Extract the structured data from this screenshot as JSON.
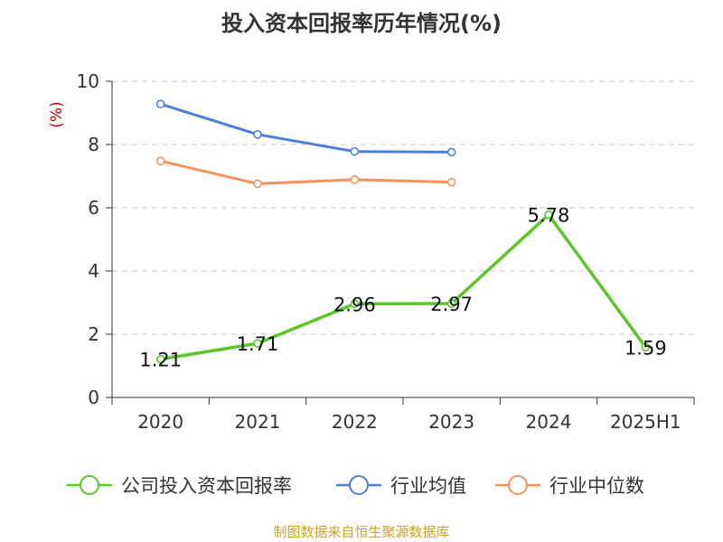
{
  "chart_data": {
    "type": "line",
    "title": "投入资本回报率历年情况(%)",
    "ylabel": "(%)",
    "categories": [
      "2020",
      "2021",
      "2022",
      "2023",
      "2024",
      "2025H1"
    ],
    "ylim": [
      0,
      10
    ],
    "yticks": [
      0,
      2,
      4,
      6,
      8,
      10
    ],
    "grid": true,
    "legend_position": "bottom",
    "series": [
      {
        "name": "公司投入资本回报率",
        "color": "#5bc52b",
        "values": [
          1.21,
          1.71,
          2.96,
          2.97,
          5.78,
          1.59
        ],
        "labels": [
          "1.21",
          "1.71",
          "2.96",
          "2.97",
          "5.78",
          "1.59"
        ]
      },
      {
        "name": "行业均值",
        "color": "#4e7fd8",
        "values": [
          9.28,
          8.32,
          7.78,
          7.76,
          null,
          null
        ]
      },
      {
        "name": "行业中位数",
        "color": "#f5915c",
        "values": [
          7.48,
          6.76,
          6.89,
          6.81,
          null,
          null
        ]
      }
    ]
  },
  "source": "制图数据来自恒生聚源数据库"
}
